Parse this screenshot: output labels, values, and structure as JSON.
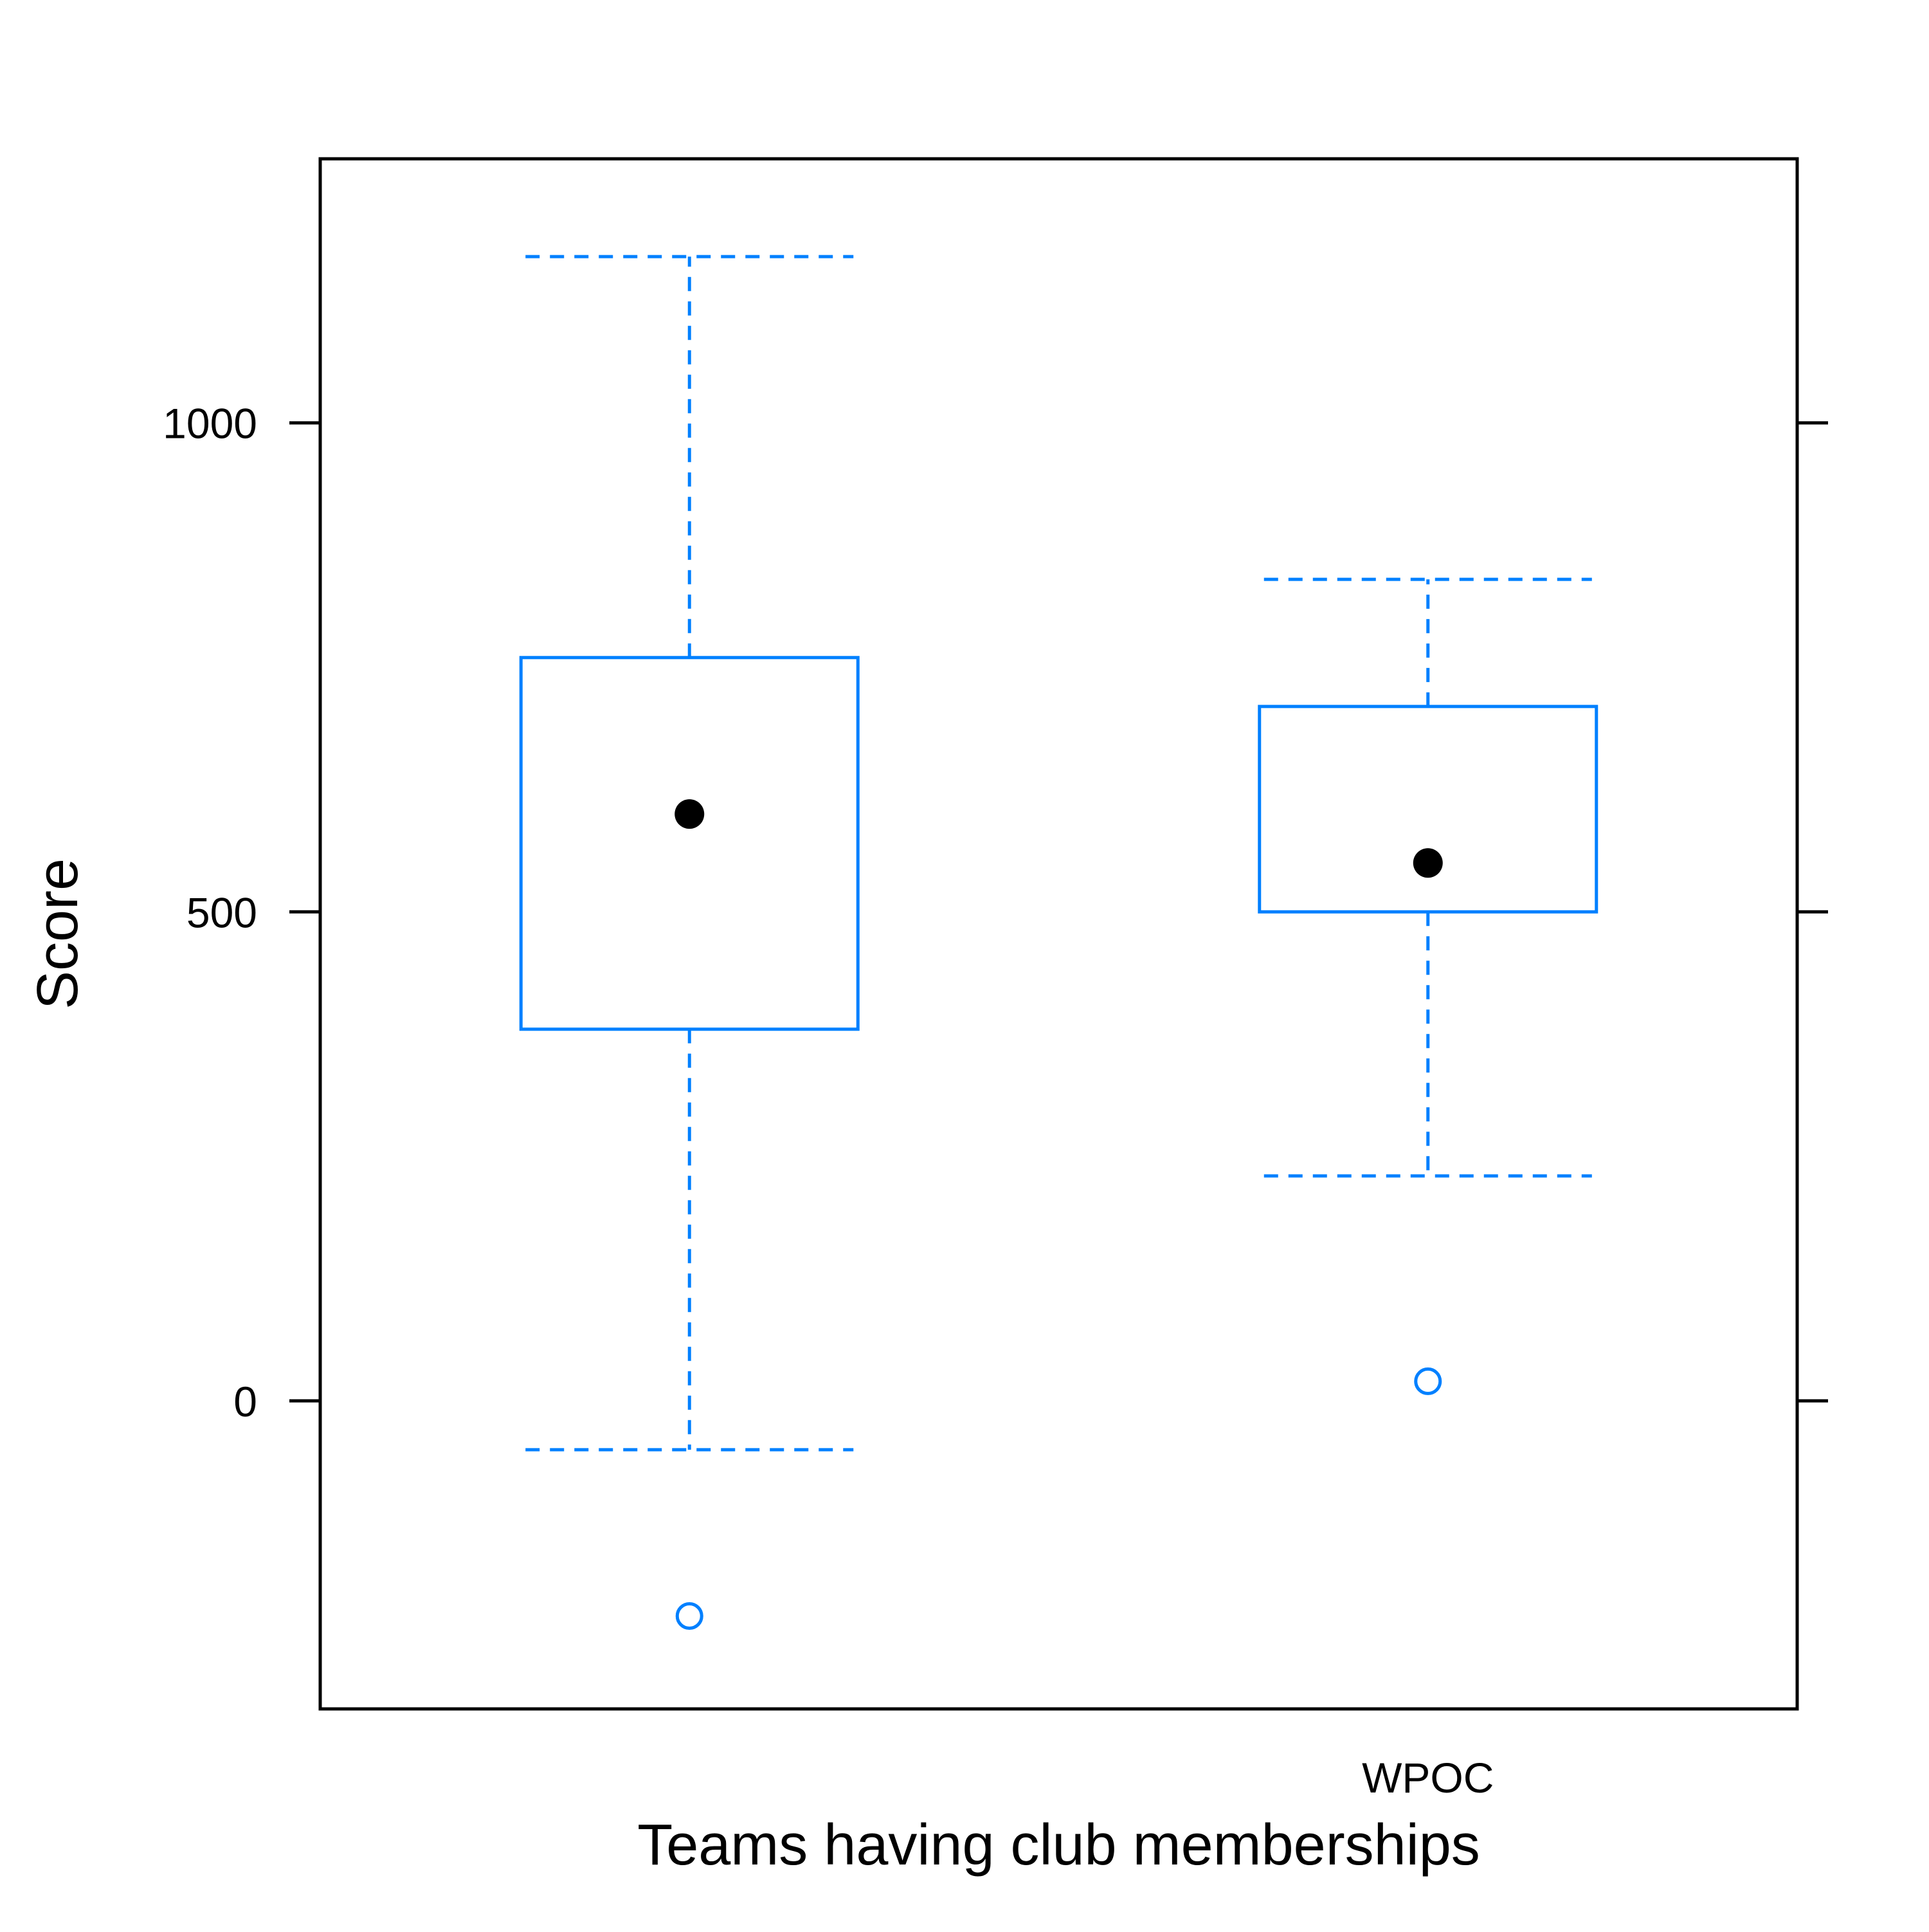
{
  "chart_data": {
    "type": "box",
    "title": "",
    "xlabel": "Teams having club memberships",
    "ylabel": "Score",
    "ylim": [
      -315,
      1270
    ],
    "yticks": [
      0,
      500,
      1000
    ],
    "yticks_labels": [
      "0",
      "500",
      "1000"
    ],
    "categories": [
      "",
      "WPOC"
    ],
    "grid": false,
    "legend": "none",
    "series": [
      {
        "category": "",
        "whisker_low": -50,
        "q1": 380,
        "median": 600,
        "q3": 760,
        "whisker_high": 1170,
        "outliers": [
          -220
        ]
      },
      {
        "category": "WPOC",
        "whisker_low": 230,
        "q1": 500,
        "median": 550,
        "q3": 710,
        "whisker_high": 840,
        "outliers": [
          20
        ]
      }
    ],
    "colors": {
      "box": "#0080ff",
      "median_dot": "#000000",
      "axis": "#000000"
    }
  }
}
